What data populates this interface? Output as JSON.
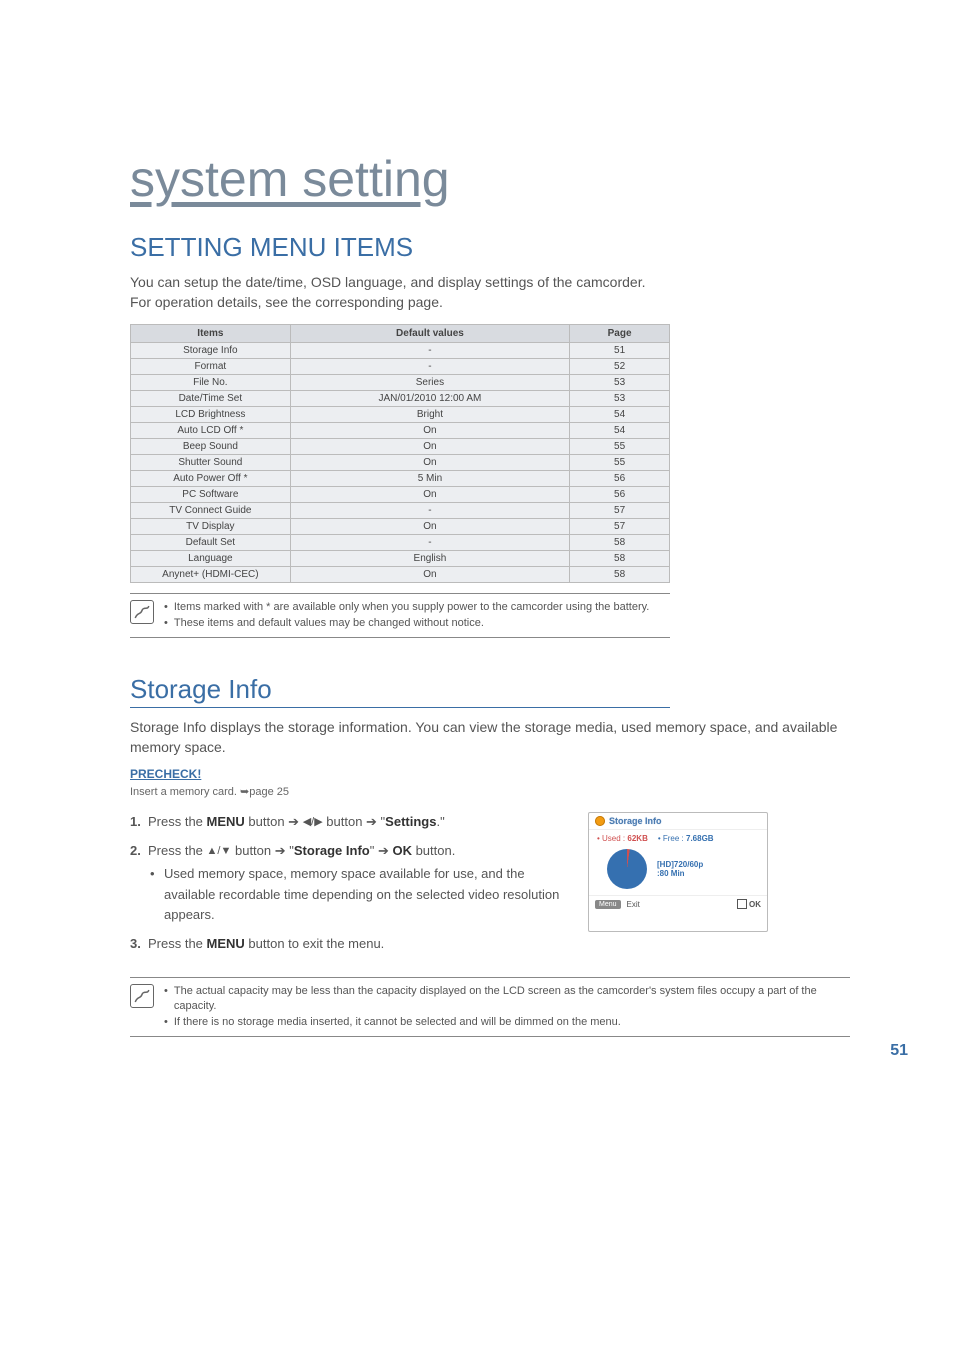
{
  "pageNumber": "51",
  "mainTitle": "system setting",
  "section1": {
    "title": "SETTING MENU ITEMS",
    "intro1": "You can setup the date/time, OSD language, and display settings of the camcorder.",
    "intro2": "For operation details, see the corresponding page."
  },
  "table": {
    "headers": [
      "Items",
      "Default values",
      "Page"
    ],
    "col_bg_header": "#d8dbe0",
    "col_bg_cell": "#eceef1",
    "rows": [
      [
        "Storage Info",
        "-",
        "51"
      ],
      [
        "Format",
        "-",
        "52"
      ],
      [
        "File No.",
        "Series",
        "53"
      ],
      [
        "Date/Time Set",
        "JAN/01/2010 12:00 AM",
        "53"
      ],
      [
        "LCD Brightness",
        "Bright",
        "54"
      ],
      [
        "Auto LCD Off *",
        "On",
        "54"
      ],
      [
        "Beep Sound",
        "On",
        "55"
      ],
      [
        "Shutter Sound",
        "On",
        "55"
      ],
      [
        "Auto Power Off *",
        "5 Min",
        "56"
      ],
      [
        "PC Software",
        "On",
        "56"
      ],
      [
        "TV Connect Guide",
        "-",
        "57"
      ],
      [
        "TV Display",
        "On",
        "57"
      ],
      [
        "Default Set",
        "-",
        "58"
      ],
      [
        "Language",
        "English",
        "58"
      ],
      [
        "Anynet+ (HDMI-CEC)",
        "On",
        "58"
      ]
    ]
  },
  "note1": {
    "bullet1": "Items marked with * are available only when you supply power to the camcorder using the battery.",
    "bullet2": "These items and default values may be changed without notice."
  },
  "section2": {
    "title": "Storage Info",
    "body": "Storage Info displays the storage information. You can view the storage media, used memory space, and available memory space.",
    "precheckLabel": "PRECHECK!",
    "precheckText": "Insert a memory card. ➥page 25"
  },
  "steps": {
    "s1_a": "Press the ",
    "s1_menu": "MENU",
    "s1_b": " button ➔ ",
    "s1_btn": " button ➔ \"",
    "s1_settings": "Settings",
    "s1_c": ".\"",
    "s2_a": "Press the ",
    "s2_b": " button ➔ \"",
    "s2_storage": "Storage Info",
    "s2_c": "\" ➔ ",
    "s2_ok": "OK",
    "s2_d": " button.",
    "s2_sub": "Used memory space, memory space available for use, and the available recordable time depending on the selected video resolution appears.",
    "s3_a": "Press the ",
    "s3_menu": "MENU",
    "s3_b": " button to exit the menu."
  },
  "lcd": {
    "title": "Storage Info",
    "usedLabel": "• Used :",
    "usedValue": "62KB",
    "freeLabel": "• Free :",
    "freeValue": "7.68GB",
    "resLine1": "[HD]720/60p",
    "resLine2": ":80 Min",
    "menuBtn": "Menu",
    "exitLabel": "Exit",
    "okLabel": "OK",
    "usedColor": "#d05050",
    "freeColor": "#3570b0"
  },
  "note2": {
    "bullet1": "The actual capacity may be less than the capacity displayed on the LCD screen as the camcorder's system files occupy a part of the capacity.",
    "bullet2": "If there is no storage media inserted, it cannot be selected and will be dimmed on the menu."
  },
  "colors": {
    "titleColor": "#7a8a9a",
    "accentBlue": "#3a6ea5",
    "textGray": "#555555"
  }
}
